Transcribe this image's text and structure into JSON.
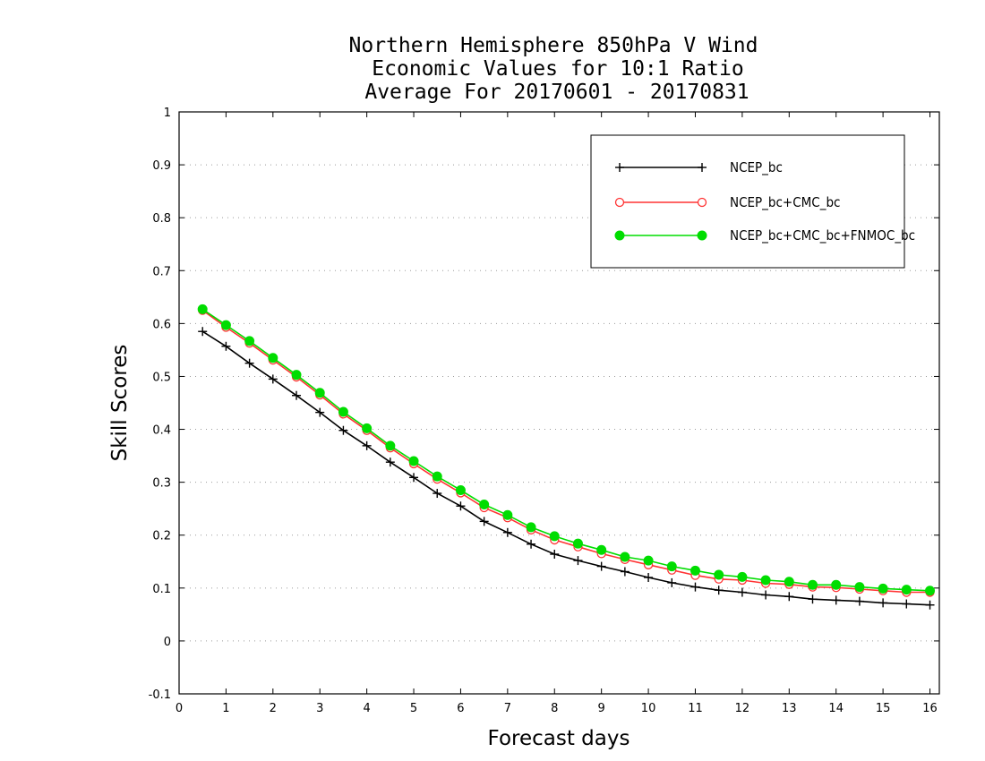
{
  "chart_data": {
    "type": "line",
    "title_lines": [
      "Northern Hemisphere 850hPa V Wind",
      "Economic Values for 10:1 Ratio",
      "Average For 20170601 - 20170831"
    ],
    "xlabel": "Forecast days",
    "ylabel": "Skill Scores",
    "xlim": [
      0,
      16.2
    ],
    "ylim": [
      -0.1,
      1
    ],
    "x_ticks": [
      "0",
      "1",
      "2",
      "3",
      "4",
      "5",
      "6",
      "7",
      "8",
      "9",
      "10",
      "11",
      "12",
      "13",
      "14",
      "15",
      "16"
    ],
    "y_ticks": [
      "-0.1",
      "0",
      "0.1",
      "0.2",
      "0.3",
      "0.4",
      "0.5",
      "0.6",
      "0.7",
      "0.8",
      "0.9",
      "1"
    ],
    "grid": "horizontal dotted",
    "legend_position": "top-right",
    "x": [
      0.5,
      1,
      1.5,
      2,
      2.5,
      3,
      3.5,
      4,
      4.5,
      5,
      5.5,
      6,
      6.5,
      7,
      7.5,
      8,
      8.5,
      9,
      9.5,
      10,
      10.5,
      11,
      11.5,
      12,
      12.5,
      13,
      13.5,
      14,
      14.5,
      15,
      15.5,
      16
    ],
    "series": [
      {
        "name": "NCEP_bc",
        "color": "#000000",
        "marker": "plus",
        "values": [
          0.585,
          0.557,
          0.525,
          0.495,
          0.464,
          0.432,
          0.398,
          0.369,
          0.338,
          0.309,
          0.279,
          0.255,
          0.226,
          0.205,
          0.183,
          0.164,
          0.152,
          0.141,
          0.131,
          0.12,
          0.11,
          0.102,
          0.096,
          0.092,
          0.087,
          0.084,
          0.079,
          0.077,
          0.075,
          0.072,
          0.07,
          0.068
        ]
      },
      {
        "name": "NCEP_bc+CMC_bc",
        "color": "#ff3333",
        "marker": "open-circle",
        "values": [
          0.625,
          0.593,
          0.563,
          0.531,
          0.499,
          0.465,
          0.429,
          0.398,
          0.365,
          0.335,
          0.306,
          0.28,
          0.252,
          0.233,
          0.21,
          0.191,
          0.178,
          0.165,
          0.154,
          0.144,
          0.134,
          0.124,
          0.117,
          0.115,
          0.109,
          0.107,
          0.102,
          0.101,
          0.098,
          0.095,
          0.092,
          0.092
        ]
      },
      {
        "name": "NCEP_bc+CMC_bc+FNMOC_bc",
        "color": "#00dd00",
        "marker": "filled-circle",
        "values": [
          0.627,
          0.597,
          0.567,
          0.535,
          0.503,
          0.469,
          0.433,
          0.402,
          0.369,
          0.34,
          0.311,
          0.285,
          0.258,
          0.238,
          0.215,
          0.198,
          0.184,
          0.172,
          0.159,
          0.152,
          0.141,
          0.133,
          0.125,
          0.121,
          0.115,
          0.112,
          0.106,
          0.106,
          0.102,
          0.099,
          0.097,
          0.095
        ]
      }
    ]
  }
}
